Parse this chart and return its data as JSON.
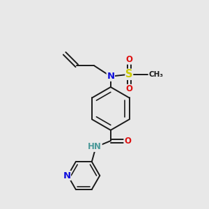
{
  "bg_color": "#e8e8e8",
  "bond_color": "#1a1a1a",
  "bond_width": 1.4,
  "atom_colors": {
    "N": "#1010dd",
    "O": "#dd1010",
    "S": "#cccc00",
    "C": "#1a1a1a",
    "NH": "#4a9999"
  },
  "font_size": 8.5,
  "fig_size": [
    3.0,
    3.0
  ],
  "dpi": 100
}
